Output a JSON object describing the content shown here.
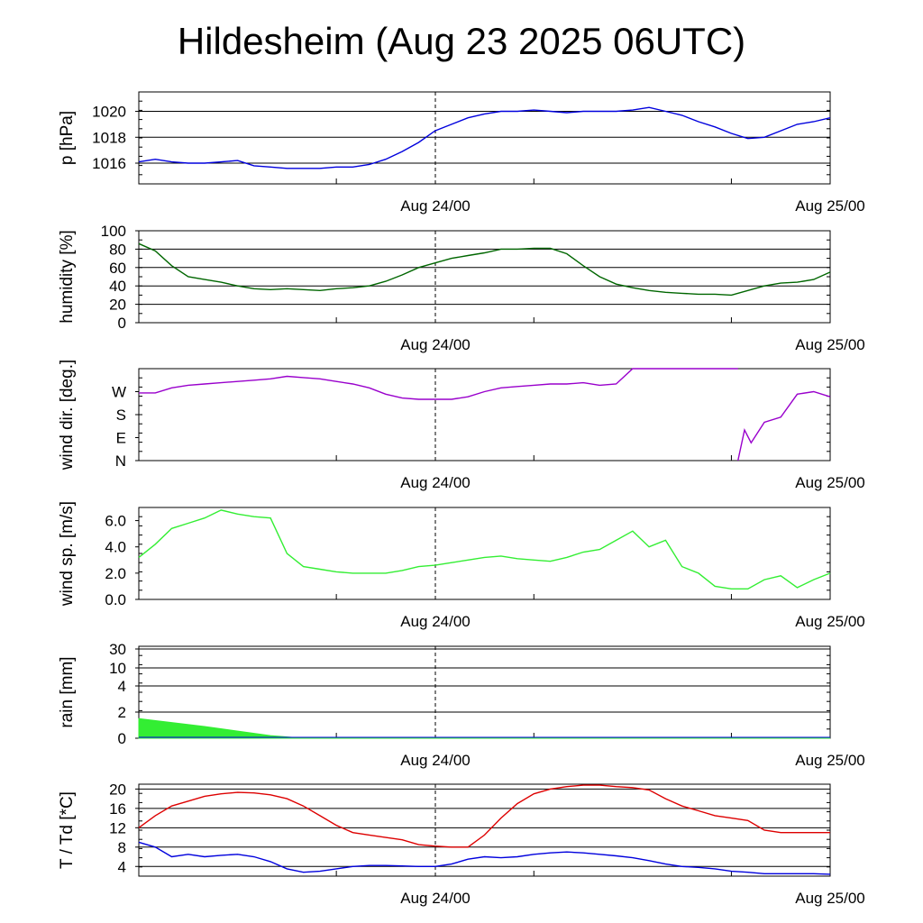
{
  "title": "Hildesheim (Aug 23 2025 06UTC)",
  "x_tick_labels": [
    "Aug 24/00",
    "Aug 25/00"
  ],
  "chart_data": [
    {
      "id": "pressure",
      "type": "line",
      "ylabel": "p [hPa]",
      "ylim": [
        1014.4,
        1021.5
      ],
      "yticks": [
        1016,
        1018,
        1020
      ],
      "ytick_labels": [
        "1016",
        "1018",
        "1020"
      ],
      "grid": true,
      "color": "#0000dd",
      "x_hours": [
        0,
        1,
        2,
        3,
        4,
        5,
        6,
        7,
        8,
        9,
        10,
        11,
        12,
        13,
        14,
        15,
        16,
        17,
        18,
        19,
        20,
        21,
        22,
        23,
        24,
        25,
        26,
        27,
        28,
        29,
        30,
        31,
        32,
        33,
        34,
        35,
        36,
        37,
        38,
        39,
        40,
        41,
        42
      ],
      "values": [
        1016.1,
        1016.3,
        1016.1,
        1016.0,
        1016.0,
        1016.1,
        1016.2,
        1015.8,
        1015.7,
        1015.6,
        1015.6,
        1015.6,
        1015.7,
        1015.7,
        1015.9,
        1016.3,
        1016.9,
        1017.6,
        1018.5,
        1019.0,
        1019.5,
        1019.8,
        1020.0,
        1020.0,
        1020.1,
        1020.0,
        1019.9,
        1020.0,
        1020.0,
        1020.0,
        1020.1,
        1020.3,
        1020.0,
        1019.7,
        1019.2,
        1018.8,
        1018.3,
        1017.9,
        1018.0,
        1018.5,
        1019.0,
        1019.2,
        1019.5
      ]
    },
    {
      "id": "humidity",
      "type": "line",
      "ylabel": "humidity [%]",
      "ylim": [
        0,
        100
      ],
      "yticks": [
        0,
        20,
        40,
        60,
        80,
        100
      ],
      "ytick_labels": [
        "0",
        "20",
        "40",
        "60",
        "80",
        "100"
      ],
      "grid": true,
      "color": "#006600",
      "x_hours": [
        0,
        1,
        2,
        3,
        4,
        5,
        6,
        7,
        8,
        9,
        10,
        11,
        12,
        13,
        14,
        15,
        16,
        17,
        18,
        19,
        20,
        21,
        22,
        23,
        24,
        25,
        26,
        27,
        28,
        29,
        30,
        31,
        32,
        33,
        34,
        35,
        36,
        37,
        38,
        39,
        40,
        41,
        42
      ],
      "values": [
        86,
        78,
        62,
        50,
        47,
        44,
        40,
        37,
        36,
        37,
        36,
        35,
        37,
        38,
        40,
        45,
        52,
        60,
        65,
        70,
        73,
        76,
        80,
        80,
        81,
        81,
        75,
        62,
        50,
        42,
        38,
        35,
        33,
        32,
        31,
        31,
        30,
        35,
        40,
        43,
        44,
        47,
        55
      ]
    },
    {
      "id": "wind-direction",
      "type": "line",
      "ylabel": "wind dir. [deg.]",
      "ylim": [
        0,
        360
      ],
      "yticks": [
        0,
        90,
        180,
        270
      ],
      "ytick_labels": [
        "N",
        "E",
        "S",
        "W"
      ],
      "grid": false,
      "color": "#9900cc",
      "x_hours": [
        0,
        1,
        2,
        3,
        4,
        5,
        6,
        7,
        8,
        9,
        10,
        11,
        12,
        13,
        14,
        15,
        16,
        17,
        18,
        19,
        20,
        21,
        22,
        23,
        24,
        25,
        26,
        27,
        28,
        29,
        30,
        31,
        32,
        33,
        34,
        35,
        36,
        36.4
      ],
      "values": [
        265,
        265,
        285,
        295,
        300,
        305,
        310,
        315,
        320,
        330,
        325,
        320,
        310,
        300,
        285,
        260,
        245,
        240,
        240,
        240,
        250,
        270,
        285,
        290,
        295,
        300,
        300,
        305,
        295,
        300,
        360,
        360,
        360,
        360,
        360,
        360,
        360,
        360
      ],
      "series2_x_hours": [
        36.4,
        36.8,
        37.2,
        38,
        39,
        40,
        41,
        42
      ],
      "series2_values": [
        0,
        120,
        70,
        150,
        170,
        260,
        270,
        250
      ]
    },
    {
      "id": "wind-speed",
      "type": "line",
      "ylabel": "wind sp. [m/s]",
      "ylim": [
        0,
        7
      ],
      "yticks": [
        0,
        2,
        4,
        6
      ],
      "ytick_labels": [
        "0.0",
        "2.0",
        "4.0",
        "6.0"
      ],
      "grid": false,
      "color": "#33ee33",
      "x_hours": [
        0,
        1,
        2,
        3,
        4,
        5,
        6,
        7,
        8,
        9,
        10,
        11,
        12,
        13,
        14,
        15,
        16,
        17,
        18,
        19,
        20,
        21,
        22,
        23,
        24,
        25,
        26,
        27,
        28,
        29,
        30,
        31,
        32,
        33,
        34,
        35,
        36,
        37,
        38,
        39,
        40,
        41,
        42
      ],
      "values": [
        3.2,
        4.2,
        5.4,
        5.8,
        6.2,
        6.8,
        6.5,
        6.3,
        6.2,
        3.5,
        2.5,
        2.3,
        2.1,
        2.0,
        2.0,
        2.0,
        2.2,
        2.5,
        2.6,
        2.8,
        3.0,
        3.2,
        3.3,
        3.1,
        3.0,
        2.9,
        3.2,
        3.6,
        3.8,
        4.5,
        5.2,
        4.0,
        4.5,
        2.5,
        2.0,
        1.0,
        0.8,
        0.8,
        1.5,
        1.8,
        0.9,
        1.5,
        2.0
      ]
    },
    {
      "id": "rain",
      "type": "area",
      "ylabel": "rain [mm]",
      "ylim": [
        0,
        30
      ],
      "yscale": "nonlinear",
      "yticks": [
        0,
        2,
        4,
        10,
        30
      ],
      "ytick_labels": [
        "0",
        "2",
        "4",
        "10",
        "30"
      ],
      "grid": true,
      "color": "#33ee33",
      "x_hours": [
        0,
        4,
        8,
        10,
        42
      ],
      "values": [
        1.5,
        0.9,
        0.2,
        0,
        0
      ]
    },
    {
      "id": "temperature",
      "type": "line",
      "ylabel": "T / Td [*C]",
      "ylim": [
        2,
        21
      ],
      "yticks": [
        4,
        8,
        12,
        16,
        20
      ],
      "ytick_labels": [
        "4",
        "8",
        "12",
        "16",
        "20"
      ],
      "grid": true,
      "series": [
        {
          "name": "T",
          "color": "#dd0000",
          "x_hours": [
            0,
            1,
            2,
            3,
            4,
            5,
            6,
            7,
            8,
            9,
            10,
            11,
            12,
            13,
            14,
            15,
            16,
            17,
            18,
            19,
            20,
            21,
            22,
            23,
            24,
            25,
            26,
            27,
            28,
            29,
            30,
            31,
            32,
            33,
            34,
            35,
            36,
            37,
            38,
            39,
            40,
            41,
            42
          ],
          "values": [
            12,
            14.5,
            16.5,
            17.5,
            18.5,
            19,
            19.3,
            19.2,
            18.8,
            18,
            16.5,
            14.5,
            12.5,
            11,
            10.5,
            10,
            9.5,
            8.5,
            8.2,
            8,
            8,
            10.5,
            14,
            17,
            19,
            20,
            20.5,
            20.8,
            20.8,
            20.5,
            20.3,
            19.8,
            18,
            16.5,
            15.5,
            14.5,
            14,
            13.5,
            11.5,
            11,
            11,
            11,
            11
          ]
        },
        {
          "name": "Td",
          "color": "#0000dd",
          "x_hours": [
            0,
            1,
            2,
            3,
            4,
            5,
            6,
            7,
            8,
            9,
            10,
            11,
            12,
            13,
            14,
            15,
            16,
            17,
            18,
            19,
            20,
            21,
            22,
            23,
            24,
            25,
            26,
            27,
            28,
            29,
            30,
            31,
            32,
            33,
            34,
            35,
            36,
            37,
            38,
            39,
            40,
            41,
            42
          ],
          "values": [
            9,
            8,
            6,
            6.5,
            6,
            6.3,
            6.5,
            6,
            5,
            3.5,
            2.8,
            3,
            3.5,
            4,
            4.2,
            4.2,
            4.1,
            4,
            4,
            4.5,
            5.5,
            6,
            5.8,
            6,
            6.5,
            6.8,
            7,
            6.8,
            6.5,
            6.2,
            5.8,
            5.2,
            4.5,
            4,
            3.8,
            3.5,
            3,
            2.8,
            2.5,
            2.5,
            2.5,
            2.5,
            2.4
          ]
        }
      ]
    }
  ]
}
